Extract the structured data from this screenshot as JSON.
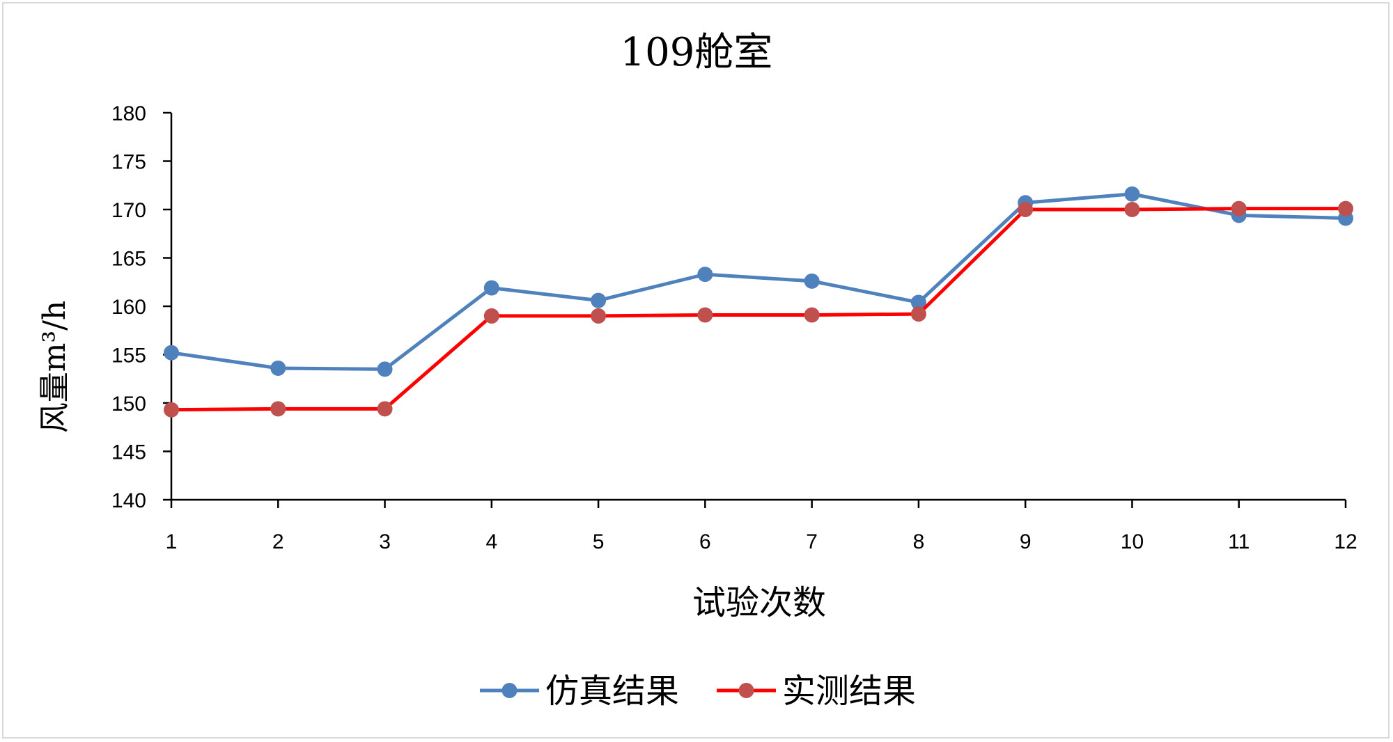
{
  "chart_data": {
    "type": "line",
    "title": "109舱室",
    "xlabel": "试验次数",
    "ylabel": "风量m³/h",
    "x": [
      1,
      2,
      3,
      4,
      5,
      6,
      7,
      8,
      9,
      10,
      11,
      12
    ],
    "ylim": [
      140,
      180
    ],
    "yticks": [
      140,
      145,
      150,
      155,
      160,
      165,
      170,
      175,
      180
    ],
    "grid": false,
    "legend_position": "bottom",
    "series": [
      {
        "name": "仿真结果",
        "color": "#4f81bd",
        "values": [
          155.2,
          153.6,
          153.5,
          161.9,
          160.6,
          163.3,
          162.6,
          160.4,
          170.7,
          171.6,
          169.4,
          169.1
        ]
      },
      {
        "name": "实测结果",
        "color": "#ff0000",
        "marker_color": "#c0504d",
        "values": [
          149.3,
          149.4,
          149.4,
          159.0,
          159.0,
          159.1,
          159.1,
          159.2,
          170.0,
          170.0,
          170.1,
          170.1
        ]
      }
    ]
  }
}
